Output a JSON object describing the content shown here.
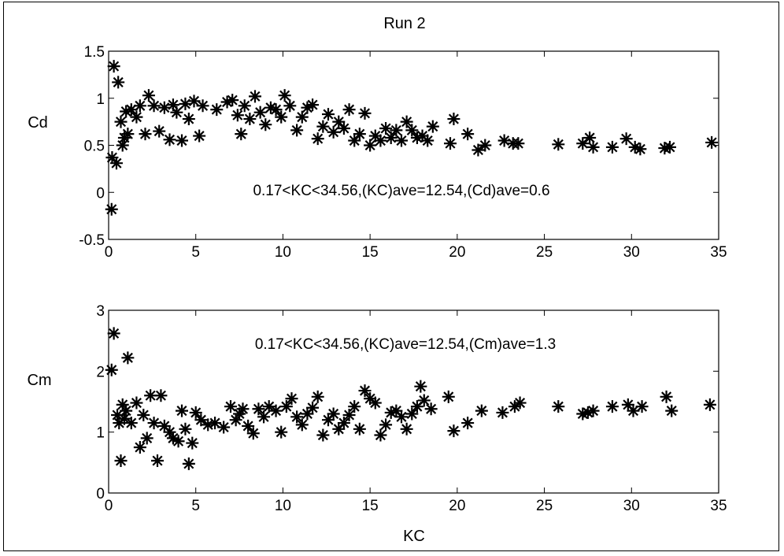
{
  "chart_data": [
    {
      "type": "scatter",
      "title": "Run 2",
      "xlabel": "",
      "ylabel": "Cd",
      "xlim": [
        0,
        35
      ],
      "ylim": [
        -0.5,
        1.5
      ],
      "xticks": [
        "0",
        "5",
        "10",
        "15",
        "20",
        "25",
        "30",
        "35"
      ],
      "yticks": [
        "-0.5",
        "0",
        "0.5",
        "1",
        "1.5"
      ],
      "marker": "asterisk",
      "grid": false,
      "annotation": "0.17<KC<34.56,(KC)ave=12.54,(Cd)ave=0.6",
      "points": [
        [
          0.17,
          -0.18
        ],
        [
          0.2,
          0.37
        ],
        [
          0.3,
          1.34
        ],
        [
          0.45,
          0.31
        ],
        [
          0.55,
          1.17
        ],
        [
          0.7,
          0.75
        ],
        [
          0.8,
          0.5
        ],
        [
          0.9,
          0.58
        ],
        [
          1.0,
          0.86
        ],
        [
          1.1,
          0.62
        ],
        [
          1.3,
          0.88
        ],
        [
          1.6,
          0.8
        ],
        [
          1.8,
          0.92
        ],
        [
          2.1,
          0.62
        ],
        [
          2.3,
          1.03
        ],
        [
          2.6,
          0.92
        ],
        [
          2.9,
          0.65
        ],
        [
          3.2,
          0.9
        ],
        [
          3.5,
          0.56
        ],
        [
          3.7,
          0.93
        ],
        [
          3.9,
          0.85
        ],
        [
          4.2,
          0.55
        ],
        [
          4.4,
          0.94
        ],
        [
          4.6,
          0.78
        ],
        [
          4.9,
          0.97
        ],
        [
          5.2,
          0.6
        ],
        [
          5.4,
          0.92
        ],
        [
          6.2,
          0.88
        ],
        [
          6.8,
          0.96
        ],
        [
          7.1,
          0.98
        ],
        [
          7.4,
          0.82
        ],
        [
          7.6,
          0.62
        ],
        [
          7.8,
          0.92
        ],
        [
          8.1,
          0.78
        ],
        [
          8.4,
          1.02
        ],
        [
          8.7,
          0.85
        ],
        [
          9.0,
          0.72
        ],
        [
          9.3,
          0.9
        ],
        [
          9.6,
          0.88
        ],
        [
          9.9,
          0.8
        ],
        [
          10.1,
          1.03
        ],
        [
          10.4,
          0.92
        ],
        [
          10.8,
          0.66
        ],
        [
          11.1,
          0.8
        ],
        [
          11.4,
          0.9
        ],
        [
          11.7,
          0.93
        ],
        [
          12.0,
          0.57
        ],
        [
          12.3,
          0.7
        ],
        [
          12.6,
          0.83
        ],
        [
          12.9,
          0.64
        ],
        [
          13.2,
          0.75
        ],
        [
          13.5,
          0.68
        ],
        [
          13.8,
          0.88
        ],
        [
          14.1,
          0.55
        ],
        [
          14.4,
          0.62
        ],
        [
          14.7,
          0.84
        ],
        [
          15.0,
          0.5
        ],
        [
          15.3,
          0.6
        ],
        [
          15.6,
          0.55
        ],
        [
          15.9,
          0.68
        ],
        [
          16.2,
          0.58
        ],
        [
          16.5,
          0.66
        ],
        [
          16.8,
          0.55
        ],
        [
          17.1,
          0.75
        ],
        [
          17.4,
          0.66
        ],
        [
          17.7,
          0.58
        ],
        [
          18.0,
          0.6
        ],
        [
          18.3,
          0.55
        ],
        [
          18.6,
          0.7
        ],
        [
          19.6,
          0.52
        ],
        [
          19.8,
          0.78
        ],
        [
          20.6,
          0.62
        ],
        [
          21.2,
          0.45
        ],
        [
          21.6,
          0.5
        ],
        [
          22.7,
          0.55
        ],
        [
          23.2,
          0.52
        ],
        [
          23.5,
          0.52
        ],
        [
          25.8,
          0.51
        ],
        [
          27.2,
          0.52
        ],
        [
          27.6,
          0.58
        ],
        [
          27.8,
          0.48
        ],
        [
          28.9,
          0.48
        ],
        [
          29.7,
          0.57
        ],
        [
          30.2,
          0.48
        ],
        [
          30.5,
          0.46
        ],
        [
          31.9,
          0.47
        ],
        [
          32.2,
          0.48
        ],
        [
          34.6,
          0.53
        ]
      ]
    },
    {
      "type": "scatter",
      "title": "",
      "xlabel": "KC",
      "ylabel": "Cm",
      "xlim": [
        0,
        35
      ],
      "ylim": [
        0,
        3
      ],
      "xticks": [
        "0",
        "5",
        "10",
        "15",
        "20",
        "25",
        "30",
        "35"
      ],
      "yticks": [
        "0",
        "1",
        "2",
        "3"
      ],
      "marker": "asterisk",
      "grid": false,
      "annotation": "0.17<KC<34.56,(KC)ave=12.54,(Cm)ave=1.3",
      "points": [
        [
          0.17,
          2.02
        ],
        [
          0.3,
          2.62
        ],
        [
          0.5,
          1.28
        ],
        [
          0.6,
          1.15
        ],
        [
          0.7,
          0.53
        ],
        [
          0.8,
          1.45
        ],
        [
          0.9,
          1.22
        ],
        [
          1.0,
          1.35
        ],
        [
          1.1,
          2.22
        ],
        [
          1.3,
          1.15
        ],
        [
          1.6,
          1.48
        ],
        [
          1.8,
          0.75
        ],
        [
          2.0,
          1.28
        ],
        [
          2.2,
          0.9
        ],
        [
          2.4,
          1.6
        ],
        [
          2.6,
          1.15
        ],
        [
          2.8,
          0.53
        ],
        [
          3.0,
          1.6
        ],
        [
          3.2,
          1.1
        ],
        [
          3.5,
          1.0
        ],
        [
          3.7,
          0.9
        ],
        [
          4.0,
          0.85
        ],
        [
          4.2,
          1.35
        ],
        [
          4.4,
          1.05
        ],
        [
          4.6,
          0.48
        ],
        [
          4.8,
          0.82
        ],
        [
          5.0,
          1.32
        ],
        [
          5.3,
          1.2
        ],
        [
          5.7,
          1.12
        ],
        [
          6.1,
          1.15
        ],
        [
          6.6,
          1.08
        ],
        [
          7.0,
          1.42
        ],
        [
          7.3,
          1.2
        ],
        [
          7.5,
          1.3
        ],
        [
          7.7,
          1.38
        ],
        [
          8.0,
          1.1
        ],
        [
          8.3,
          0.98
        ],
        [
          8.6,
          1.38
        ],
        [
          8.9,
          1.25
        ],
        [
          9.2,
          1.42
        ],
        [
          9.6,
          1.35
        ],
        [
          9.9,
          1.0
        ],
        [
          10.2,
          1.42
        ],
        [
          10.5,
          1.55
        ],
        [
          10.8,
          1.25
        ],
        [
          11.1,
          1.12
        ],
        [
          11.4,
          1.3
        ],
        [
          11.7,
          1.4
        ],
        [
          12.0,
          1.58
        ],
        [
          12.3,
          0.95
        ],
        [
          12.6,
          1.2
        ],
        [
          12.9,
          1.3
        ],
        [
          13.2,
          1.05
        ],
        [
          13.5,
          1.15
        ],
        [
          13.8,
          1.28
        ],
        [
          14.1,
          1.42
        ],
        [
          14.4,
          1.05
        ],
        [
          14.7,
          1.68
        ],
        [
          15.0,
          1.55
        ],
        [
          15.3,
          1.48
        ],
        [
          15.6,
          0.95
        ],
        [
          15.9,
          1.12
        ],
        [
          16.2,
          1.32
        ],
        [
          16.5,
          1.35
        ],
        [
          16.8,
          1.25
        ],
        [
          17.1,
          1.05
        ],
        [
          17.4,
          1.3
        ],
        [
          17.7,
          1.42
        ],
        [
          17.9,
          1.75
        ],
        [
          18.1,
          1.52
        ],
        [
          18.5,
          1.38
        ],
        [
          19.5,
          1.58
        ],
        [
          19.8,
          1.02
        ],
        [
          20.6,
          1.15
        ],
        [
          21.4,
          1.35
        ],
        [
          22.6,
          1.32
        ],
        [
          23.3,
          1.42
        ],
        [
          23.6,
          1.48
        ],
        [
          25.8,
          1.42
        ],
        [
          27.2,
          1.3
        ],
        [
          27.5,
          1.32
        ],
        [
          27.8,
          1.35
        ],
        [
          28.9,
          1.42
        ],
        [
          29.8,
          1.45
        ],
        [
          30.1,
          1.35
        ],
        [
          30.6,
          1.42
        ],
        [
          32.0,
          1.58
        ],
        [
          32.3,
          1.35
        ],
        [
          34.5,
          1.45
        ]
      ]
    }
  ]
}
